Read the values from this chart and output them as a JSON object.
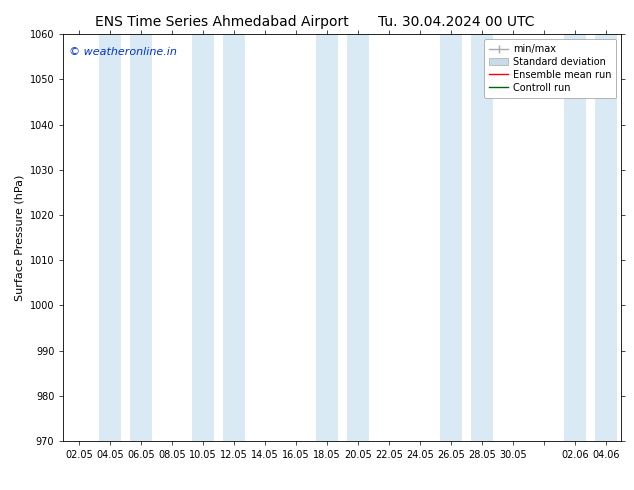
{
  "title_left": "ENS Time Series Ahmedabad Airport",
  "title_right": "Tu. 30.04.2024 00 UTC",
  "ylabel": "Surface Pressure (hPa)",
  "ylim": [
    970,
    1060
  ],
  "yticks": [
    970,
    980,
    990,
    1000,
    1010,
    1020,
    1030,
    1040,
    1050,
    1060
  ],
  "xtick_labels": [
    "02.05",
    "04.05",
    "06.05",
    "08.05",
    "10.05",
    "12.05",
    "14.05",
    "16.05",
    "18.05",
    "20.05",
    "22.05",
    "24.05",
    "26.05",
    "28.05",
    "30.05",
    "",
    "02.06",
    "04.06"
  ],
  "watermark": "© weatheronline.in",
  "watermark_color": "#0033cc",
  "bg_color": "#ffffff",
  "plot_bg_color": "#ffffff",
  "band_color": "#daeaf5",
  "legend_entries": [
    "min/max",
    "Standard deviation",
    "Ensemble mean run",
    "Controll run"
  ],
  "legend_line_color": "#aaaaaa",
  "legend_patch_color": "#c8dce8",
  "legend_red": "#ff0000",
  "legend_green": "#006600",
  "title_fontsize": 10,
  "axis_fontsize": 8,
  "tick_fontsize": 7,
  "band_ranges": [
    [
      1,
      2
    ],
    [
      4,
      5
    ],
    [
      8,
      9
    ],
    [
      12,
      13
    ],
    [
      16,
      17
    ]
  ]
}
